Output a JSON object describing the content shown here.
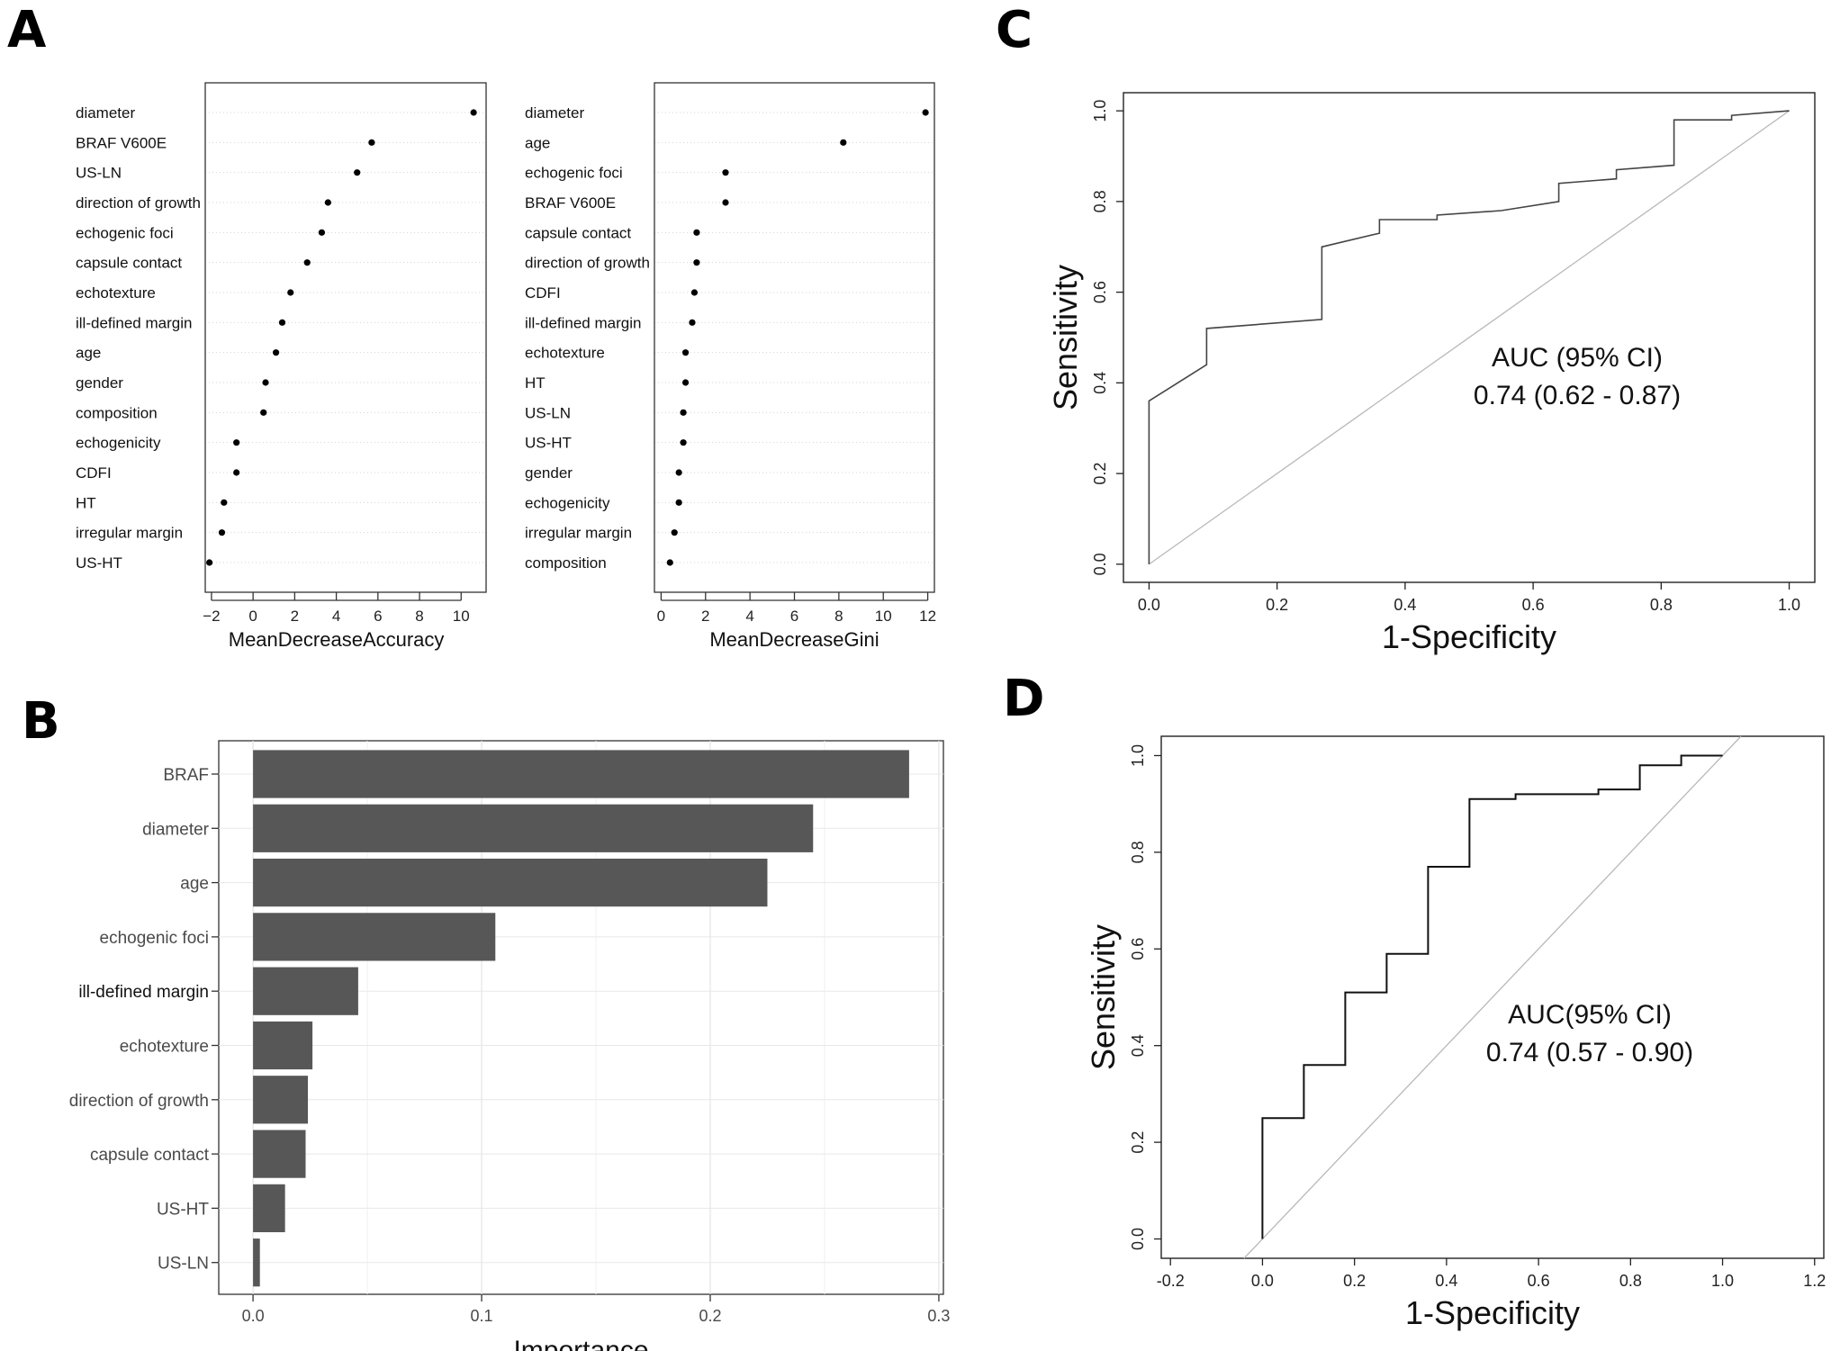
{
  "panel_labels": {
    "a": "A",
    "b": "B",
    "c": "C",
    "d": "D"
  },
  "chart_data": [
    {
      "id": "A1",
      "type": "scatter",
      "title": "",
      "xlabel": "MeanDecreaseAccuracy",
      "ylabel": "",
      "xlim": [
        -2.3,
        11.2
      ],
      "xticks": [
        -2,
        0,
        2,
        4,
        6,
        8,
        10
      ],
      "xtick_labels": [
        "−2",
        "0",
        "2",
        "4",
        "6",
        "8",
        "10"
      ],
      "categories": [
        "diameter",
        "BRAF V600E",
        "US-LN",
        "direction of growth",
        "echogenic foci",
        "capsule contact",
        "echotexture",
        "ill-defined margin",
        "age",
        "gender",
        "composition",
        "echogenicity",
        "CDFI",
        "HT",
        "irregular margin",
        "US-HT"
      ],
      "values": [
        10.6,
        5.7,
        5.0,
        3.6,
        3.3,
        2.6,
        1.8,
        1.4,
        1.1,
        0.6,
        0.5,
        -0.8,
        -0.8,
        -1.4,
        -1.5,
        -2.1
      ]
    },
    {
      "id": "A2",
      "type": "scatter",
      "title": "",
      "xlabel": "MeanDecreaseGini",
      "ylabel": "",
      "xlim": [
        -0.3,
        12.3
      ],
      "xticks": [
        0,
        2,
        4,
        6,
        8,
        10,
        12
      ],
      "xtick_labels": [
        "0",
        "2",
        "4",
        "6",
        "8",
        "10",
        "12"
      ],
      "categories": [
        "diameter",
        "age",
        "echogenic foci",
        "BRAF V600E",
        "capsule contact",
        "direction  of growth",
        "CDFI",
        "ill-defined margin",
        "echotexture",
        "HT",
        "US-LN",
        "US-HT",
        "gender",
        "echogenicity",
        "irregular margin",
        "composition"
      ],
      "values": [
        11.9,
        8.2,
        2.9,
        2.9,
        1.6,
        1.6,
        1.5,
        1.4,
        1.1,
        1.1,
        1.0,
        1.0,
        0.8,
        0.8,
        0.6,
        0.4
      ]
    },
    {
      "id": "B",
      "type": "bar",
      "title": "",
      "xlabel": "Importance",
      "ylabel": "",
      "xlim": [
        -0.015,
        0.302
      ],
      "xticks": [
        0.0,
        0.1,
        0.2,
        0.3
      ],
      "xtick_labels": [
        "0.0",
        "0.1",
        "0.2",
        "0.3"
      ],
      "categories": [
        "BRAF",
        "diameter",
        "age",
        "echogenic foci",
        "ill-defined margin",
        "echotexture",
        "direction of growth",
        "capsule contact",
        "US-HT",
        "US-LN"
      ],
      "values": [
        0.287,
        0.245,
        0.225,
        0.106,
        0.046,
        0.026,
        0.024,
        0.023,
        0.014,
        0.003
      ]
    },
    {
      "id": "C",
      "type": "line",
      "title": "",
      "xlabel": "1-Specificity",
      "ylabel": "Sensitivity",
      "xlim": [
        -0.04,
        1.04
      ],
      "ylim": [
        -0.04,
        1.04
      ],
      "xticks": [
        0.0,
        0.2,
        0.4,
        0.6,
        0.8,
        1.0
      ],
      "xtick_labels": [
        "0.0",
        "0.2",
        "0.4",
        "0.6",
        "0.8",
        "1.0"
      ],
      "yticks": [
        0.0,
        0.2,
        0.4,
        0.6,
        0.8,
        1.0
      ],
      "ytick_labels": [
        "0.0",
        "0.2",
        "0.4",
        "0.6",
        "0.8",
        "1.0"
      ],
      "annotation": [
        "AUC (95% CI)",
        "0.74 (0.62 - 0.87)"
      ],
      "series": [
        {
          "name": "ROC",
          "x": [
            0,
            0,
            0.09,
            0.09,
            0.27,
            0.27,
            0.36,
            0.36,
            0.45,
            0.45,
            0.55,
            0.64,
            0.64,
            0.73,
            0.73,
            0.82,
            0.82,
            0.91,
            0.91,
            1.0
          ],
          "y": [
            0,
            0.36,
            0.44,
            0.52,
            0.54,
            0.7,
            0.73,
            0.76,
            0.76,
            0.77,
            0.78,
            0.8,
            0.84,
            0.85,
            0.87,
            0.88,
            0.98,
            0.98,
            0.99,
            1.0
          ]
        },
        {
          "name": "reference",
          "x": [
            0,
            1
          ],
          "y": [
            0,
            1
          ]
        }
      ]
    },
    {
      "id": "D",
      "type": "line",
      "title": "",
      "xlabel": "1-Specificity",
      "ylabel": "Sensitivity",
      "xlim": [
        -0.22,
        1.22
      ],
      "ylim": [
        -0.04,
        1.04
      ],
      "xticks": [
        -0.2,
        0.0,
        0.2,
        0.4,
        0.6,
        0.8,
        1.0,
        1.2
      ],
      "xtick_labels": [
        "-0.2",
        "0.0",
        "0.2",
        "0.4",
        "0.6",
        "0.8",
        "1.0",
        "1.2"
      ],
      "yticks": [
        0.0,
        0.2,
        0.4,
        0.6,
        0.8,
        1.0
      ],
      "ytick_labels": [
        "0.0",
        "0.2",
        "0.4",
        "0.6",
        "0.8",
        "1.0"
      ],
      "annotation": [
        "AUC(95% CI)",
        "0.74 (0.57 - 0.90)"
      ],
      "series": [
        {
          "name": "ROC",
          "x": [
            0,
            0,
            0.09,
            0.09,
            0.18,
            0.18,
            0.27,
            0.27,
            0.36,
            0.36,
            0.45,
            0.45,
            0.55,
            0.55,
            0.73,
            0.73,
            0.82,
            0.82,
            0.91,
            0.91,
            1.0
          ],
          "y": [
            0,
            0.25,
            0.25,
            0.36,
            0.36,
            0.51,
            0.51,
            0.59,
            0.59,
            0.77,
            0.77,
            0.91,
            0.91,
            0.92,
            0.92,
            0.93,
            0.93,
            0.98,
            0.98,
            1.0,
            1.0
          ]
        },
        {
          "name": "reference",
          "x": [
            -0.04,
            1.04
          ],
          "y": [
            -0.04,
            1.04
          ]
        }
      ]
    }
  ]
}
